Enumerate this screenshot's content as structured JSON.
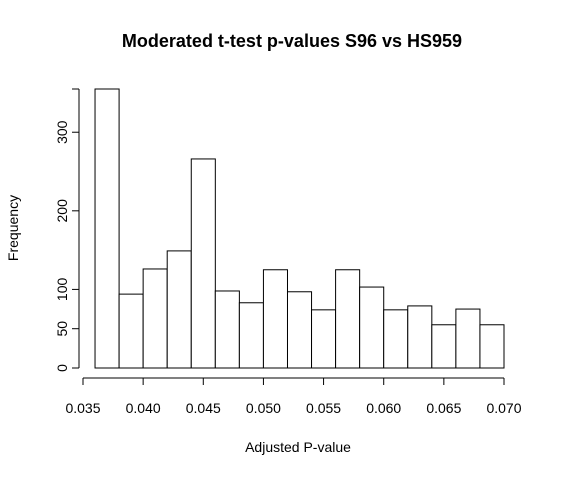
{
  "chart_data": {
    "type": "bar",
    "title": "Moderated t-test p-values S96 vs HS959",
    "xlabel": "Adjusted P-value",
    "ylabel": "Frequency",
    "bins": [
      {
        "x0": 0.036,
        "x1": 0.038,
        "count": 355
      },
      {
        "x0": 0.038,
        "x1": 0.04,
        "count": 94
      },
      {
        "x0": 0.04,
        "x1": 0.042,
        "count": 126
      },
      {
        "x0": 0.042,
        "x1": 0.044,
        "count": 149
      },
      {
        "x0": 0.044,
        "x1": 0.046,
        "count": 266
      },
      {
        "x0": 0.046,
        "x1": 0.048,
        "count": 98
      },
      {
        "x0": 0.048,
        "x1": 0.05,
        "count": 83
      },
      {
        "x0": 0.05,
        "x1": 0.052,
        "count": 125
      },
      {
        "x0": 0.052,
        "x1": 0.054,
        "count": 97
      },
      {
        "x0": 0.054,
        "x1": 0.056,
        "count": 74
      },
      {
        "x0": 0.056,
        "x1": 0.058,
        "count": 125
      },
      {
        "x0": 0.058,
        "x1": 0.06,
        "count": 103
      },
      {
        "x0": 0.06,
        "x1": 0.062,
        "count": 74
      },
      {
        "x0": 0.062,
        "x1": 0.064,
        "count": 79
      },
      {
        "x0": 0.064,
        "x1": 0.066,
        "count": 55
      },
      {
        "x0": 0.066,
        "x1": 0.068,
        "count": 75
      },
      {
        "x0": 0.068,
        "x1": 0.07,
        "count": 55
      }
    ],
    "xlim": [
      0.035,
      0.07
    ],
    "ylim": [
      0,
      355
    ],
    "x_ticks": [
      0.035,
      0.04,
      0.045,
      0.05,
      0.055,
      0.06,
      0.065,
      0.07
    ],
    "x_tick_labels": [
      "0.035",
      "0.040",
      "0.045",
      "0.050",
      "0.055",
      "0.060",
      "0.065",
      "0.070"
    ],
    "y_ticks": [
      0,
      50,
      100,
      200,
      300
    ],
    "y_tick_labels": [
      "0",
      "50",
      "100",
      "200",
      "300"
    ],
    "grid": false,
    "legend": "none"
  }
}
